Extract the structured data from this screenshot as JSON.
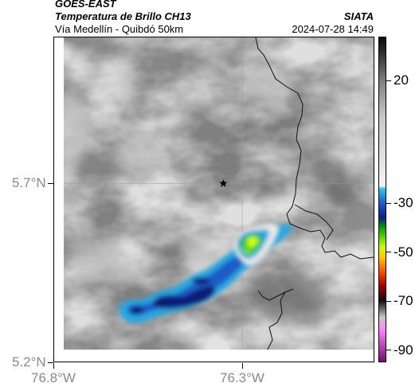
{
  "header": {
    "product": "GOES-EAST",
    "title": "Temperatura de Brillo CH13",
    "subtitle": "Vía Medellín - Quibdó 50km",
    "agency": "SIATA",
    "datetime": "2024-07-28 14:49"
  },
  "axes": {
    "x_ticks": [
      {
        "lon": -76.8,
        "label": "76.8°W"
      },
      {
        "lon": -76.3,
        "label": "76.3°W"
      }
    ],
    "y_ticks": [
      {
        "lat": 5.7,
        "label": "5.7°N"
      },
      {
        "lat": 5.2,
        "label": "5.2°N"
      }
    ],
    "lon_range": [
      -76.8,
      -75.95
    ],
    "lat_range": [
      5.2,
      6.11
    ],
    "grid": true
  },
  "marker": {
    "symbol": "star",
    "lon": -76.35,
    "lat": 5.7
  },
  "colorbar": {
    "range": [
      -95,
      38
    ],
    "ticks": [
      {
        "value": 20,
        "label": "20"
      },
      {
        "value": -30,
        "label": "-30"
      },
      {
        "value": -50,
        "label": "-50"
      },
      {
        "value": -70,
        "label": "-70"
      },
      {
        "value": -90,
        "label": "-90"
      }
    ],
    "stops": [
      {
        "value": 38,
        "color": "#0a0a0a"
      },
      {
        "value": 30,
        "color": "#3a3a3a"
      },
      {
        "value": 20,
        "color": "#808080"
      },
      {
        "value": 5,
        "color": "#c9c9c9"
      },
      {
        "value": -23,
        "color": "#f4f4f4"
      },
      {
        "value": -24,
        "color": "#30c8e0"
      },
      {
        "value": -30,
        "color": "#1a5ad0"
      },
      {
        "value": -36,
        "color": "#08208a"
      },
      {
        "value": -40,
        "color": "#00a000"
      },
      {
        "value": -48,
        "color": "#c8ff00"
      },
      {
        "value": -52,
        "color": "#ffcc00"
      },
      {
        "value": -58,
        "color": "#ff5000"
      },
      {
        "value": -64,
        "color": "#a00000"
      },
      {
        "value": -70,
        "color": "#101010"
      },
      {
        "value": -77,
        "color": "#c8c8c8"
      },
      {
        "value": -82,
        "color": "#ff80ff"
      },
      {
        "value": -95,
        "color": "#701070"
      }
    ]
  },
  "colors": {
    "cloud_shield_outer": "#29a9e0",
    "cloud_shield_mid": "#1b5bc4",
    "cloud_shield_core": "#0a1e78",
    "convective_core": "#33cc33",
    "convective_peak": "#d8ff00",
    "boundary": "#111111",
    "grid": "#9a9a9a"
  }
}
